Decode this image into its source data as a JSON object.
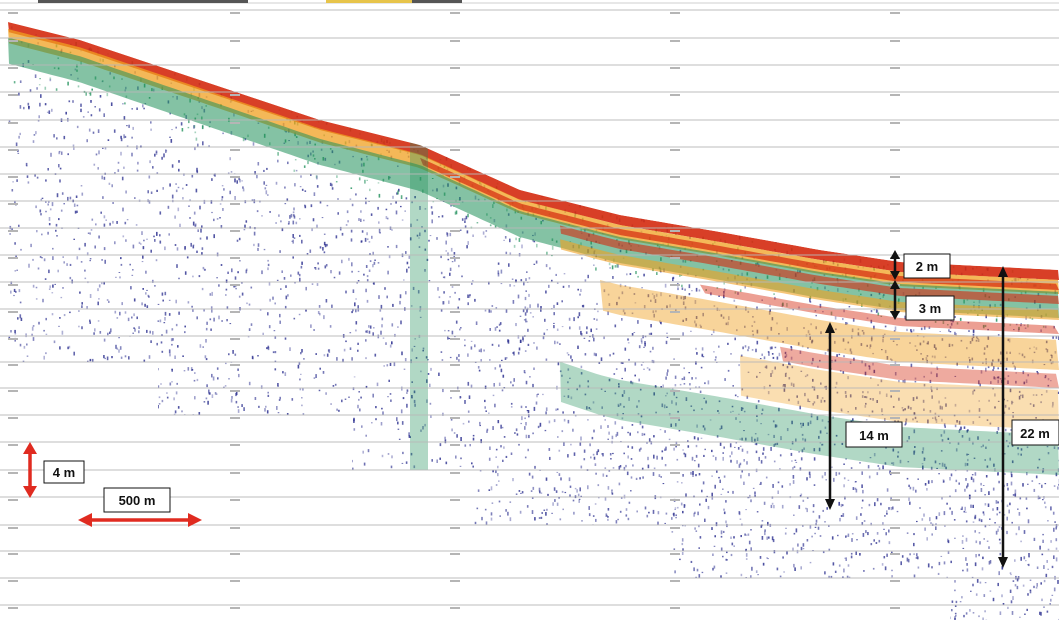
{
  "figure": {
    "description_colors": {
      "strong_return": "#d42a10",
      "medium_return": "#f0a020",
      "weak_return": "#1f8f5a",
      "noise": "#2b2f8f",
      "background": "#ffffff",
      "grid": "#b8b8b8",
      "scale_arrow": "#e02b20",
      "thickness_arrow": "#111111"
    },
    "annotations": {
      "layer_a": "2 m",
      "layer_b": "3 m",
      "layer_c": "14 m",
      "layer_d": "22 m",
      "vertical_scale": "4 m",
      "horizontal_scale": "500 m"
    }
  }
}
